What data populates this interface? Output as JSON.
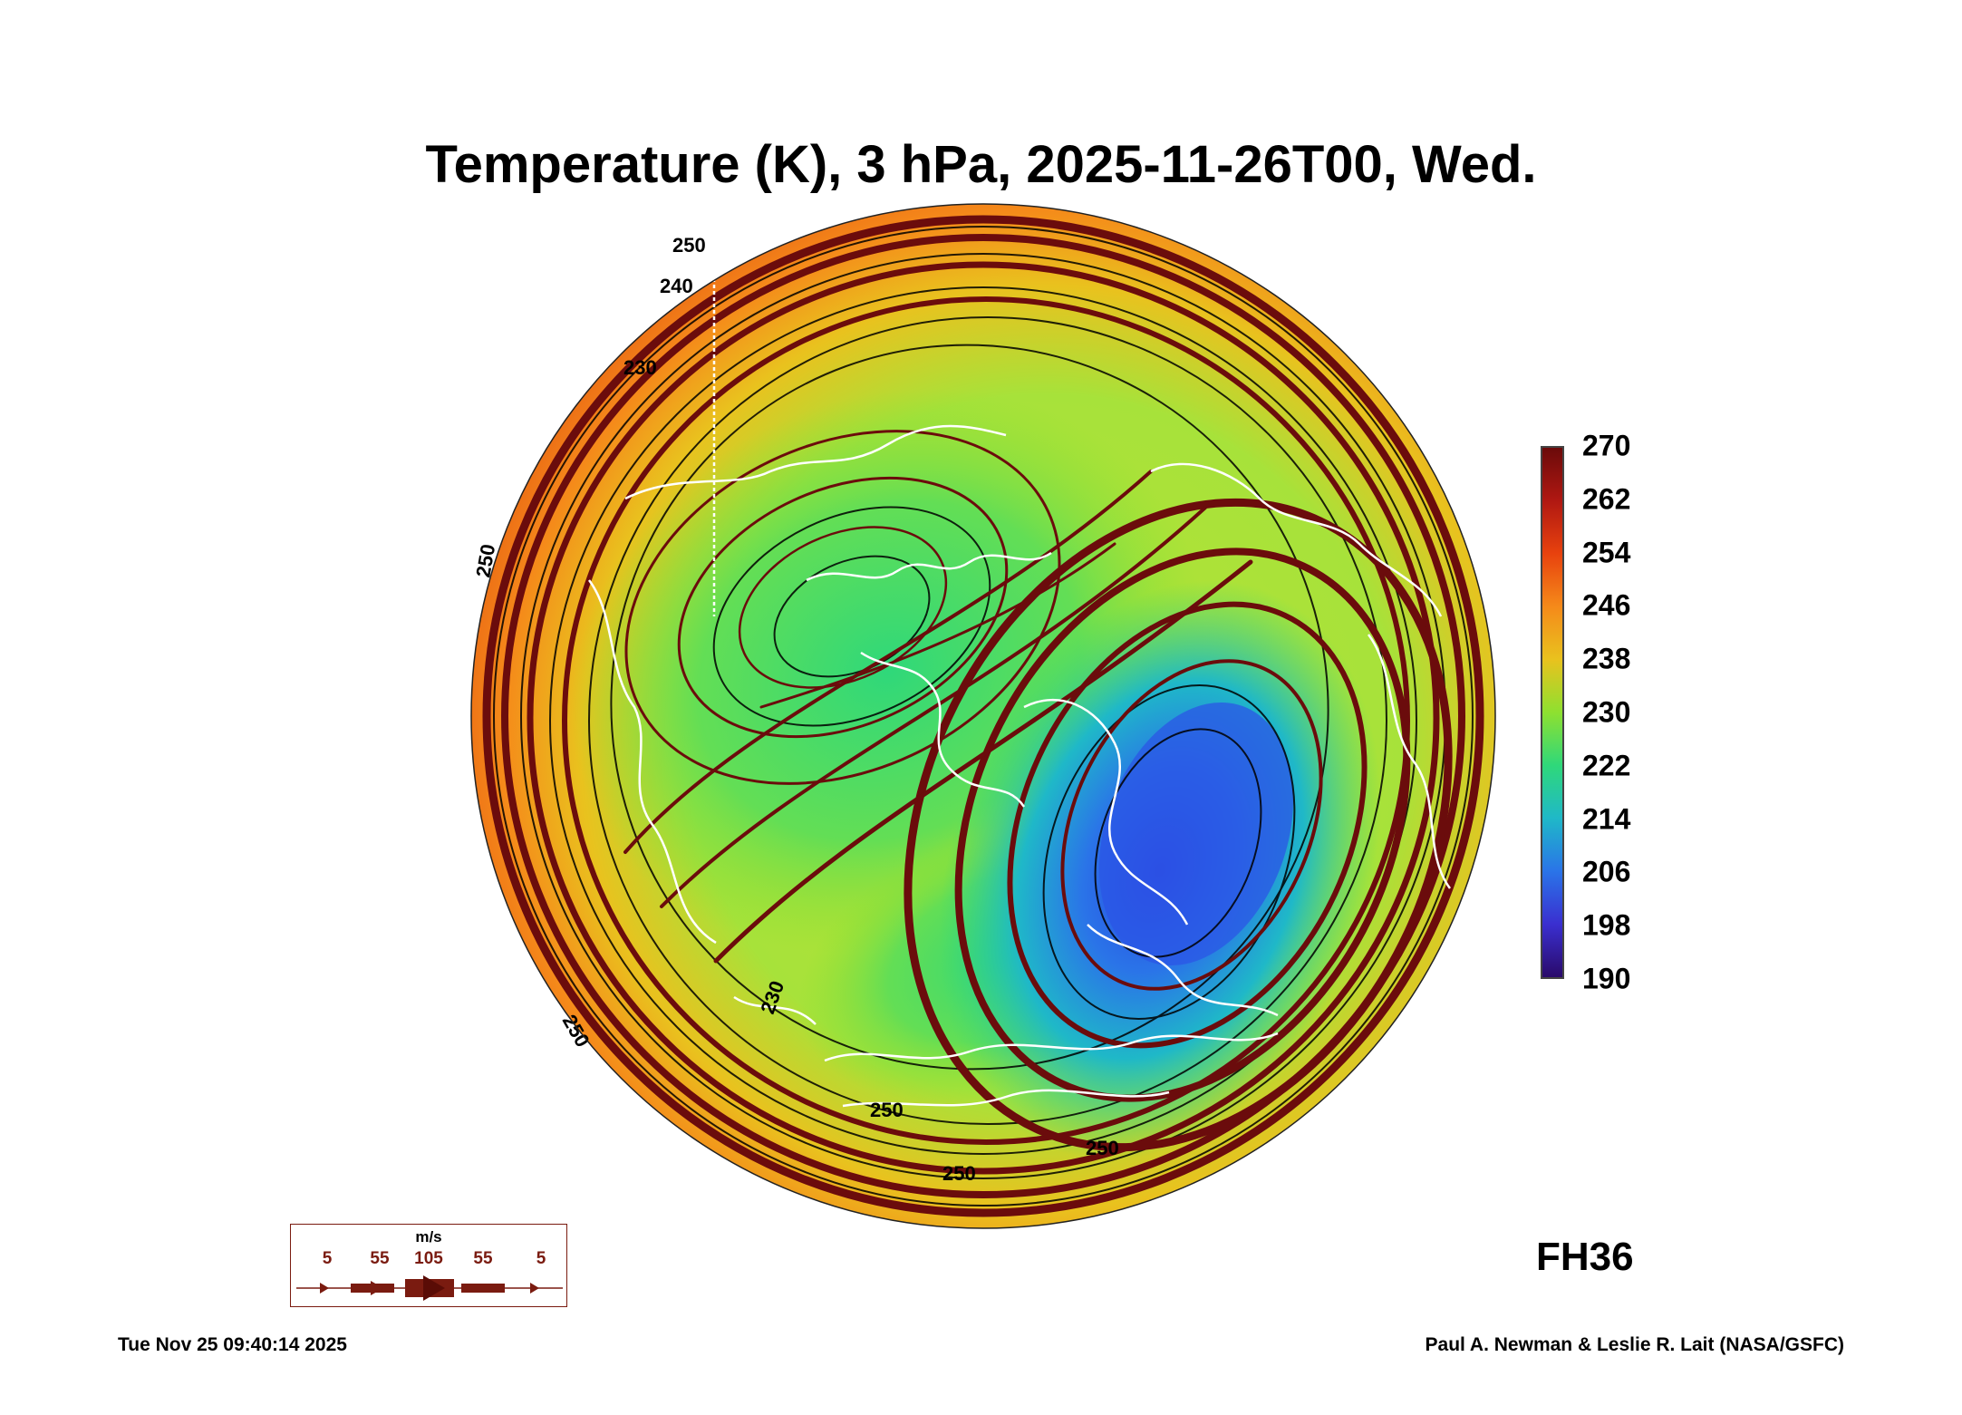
{
  "title": "Temperature (K), 3 hPa, 2025-11-26T00, Wed.",
  "forecast_hour": "FH36",
  "colorbar": {
    "ticks": [
      "270",
      "262",
      "254",
      "246",
      "238",
      "230",
      "222",
      "214",
      "206",
      "198",
      "190"
    ],
    "range": [
      190,
      270
    ],
    "colors": [
      "#6b0a0a",
      "#b01812",
      "#e8420e",
      "#f58a1a",
      "#e9c21e",
      "#8ee030",
      "#2fd87a",
      "#1fb8c8",
      "#2a74e8",
      "#3a2fd0",
      "#2a0a6a"
    ]
  },
  "contour_labels": [
    "250",
    "240",
    "230",
    "250",
    "250",
    "230",
    "250",
    "250",
    "250"
  ],
  "wind_legend": {
    "unit": "m/s",
    "speeds": [
      "5",
      "55",
      "105",
      "55",
      "5"
    ]
  },
  "footer": {
    "timestamp": "Tue Nov 25 09:40:14 2025",
    "credit": "Paul A. Newman & Leslie R. Lait (NASA/GSFC)"
  }
}
